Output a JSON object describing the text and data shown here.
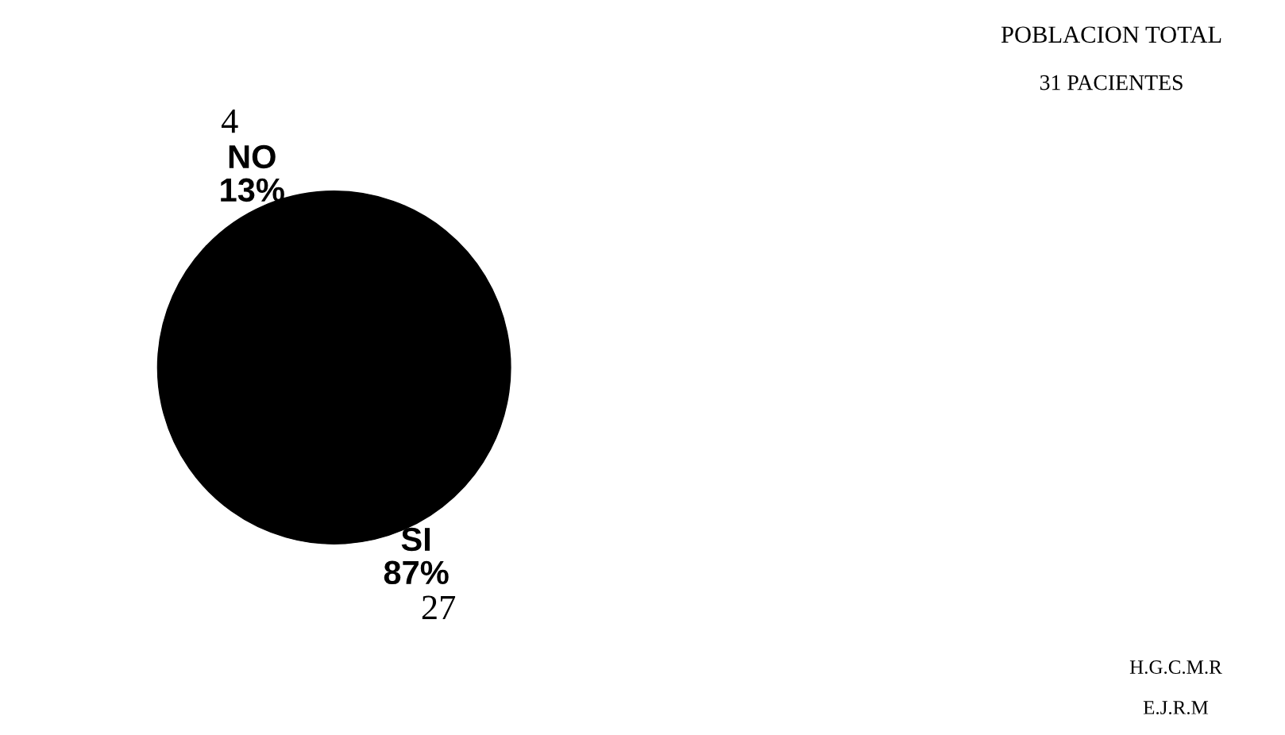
{
  "chart_data": {
    "type": "pie",
    "categories": [
      "SI",
      "NO"
    ],
    "values": [
      27,
      4
    ],
    "colors": [
      "#000000",
      "#000000"
    ],
    "value_labels": [
      "27",
      "4"
    ],
    "annotations": [
      {
        "text": "87%",
        "x": "SI"
      },
      {
        "text": "13%",
        "x": "NO"
      },
      "POBLACION TOTAL",
      "31 PACIENTES",
      "H.G.C.M.R",
      "E.J.R.M"
    ]
  }
}
